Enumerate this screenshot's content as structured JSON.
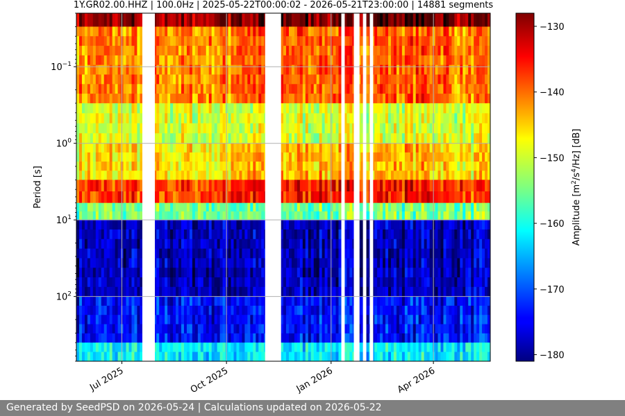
{
  "chart_data": {
    "type": "heatmap",
    "title": "1Y.GR02.00.HHZ | 100.0Hz | 2025-05-22T00:00:02 - 2026-05-21T23:00:00 | 14881 segments",
    "ylabel": "Period [s]",
    "y_scale": "log",
    "y_inverted": true,
    "ylim": [
      0.02,
      700
    ],
    "y_ticks": [
      {
        "value": 0.1,
        "base": "10",
        "exp": "−1"
      },
      {
        "value": 1,
        "base": "10",
        "exp": "0"
      },
      {
        "value": 10,
        "base": "10",
        "exp": "1"
      },
      {
        "value": 100,
        "base": "10",
        "exp": "2"
      }
    ],
    "xlim": [
      "2025-05-22",
      "2026-05-21"
    ],
    "x_ticks": [
      {
        "date": "2025-07-01",
        "label": "Jul 2025"
      },
      {
        "date": "2025-10-01",
        "label": "Oct 2025"
      },
      {
        "date": "2026-01-01",
        "label": "Jan 2026"
      },
      {
        "date": "2026-04-01",
        "label": "Apr 2026"
      }
    ],
    "grid": true,
    "data_gaps": [
      [
        "2025-07-19",
        "2025-07-30"
      ],
      [
        "2025-11-04",
        "2025-11-18"
      ],
      [
        "2026-01-10",
        "2026-01-13"
      ],
      [
        "2026-01-21",
        "2026-01-26"
      ],
      [
        "2026-01-29",
        "2026-02-01"
      ],
      [
        "2026-02-04",
        "2026-02-07"
      ]
    ],
    "period_bands": [
      {
        "period_range": [
          0.02,
          0.03
        ],
        "level_db": -130
      },
      {
        "period_range": [
          0.03,
          0.3
        ],
        "level_db": -142
      },
      {
        "period_range": [
          0.3,
          1
        ],
        "level_db": -150
      },
      {
        "period_range": [
          1,
          3
        ],
        "level_db": -147
      },
      {
        "period_range": [
          3,
          6
        ],
        "level_db": -138
      },
      {
        "period_range": [
          6,
          10
        ],
        "level_db": -155
      },
      {
        "period_range": [
          10,
          100
        ],
        "level_db": -178
      },
      {
        "period_range": [
          100,
          400
        ],
        "level_db": -174
      },
      {
        "period_range": [
          400,
          700
        ],
        "level_db": -162
      }
    ],
    "colorbar": {
      "label_text": "Amplitude [m",
      "label_sup1": "2",
      "label_mid": "/s",
      "label_sup2": "4",
      "label_end": "/Hz] [dB]",
      "colormap": "jet",
      "range": [
        -181,
        -128
      ],
      "ticks": [
        -130,
        -140,
        -150,
        -160,
        -170,
        -180
      ],
      "tick_labels": [
        "−130",
        "−140",
        "−150",
        "−160",
        "−170",
        "−180"
      ]
    }
  },
  "footer": {
    "text": "Generated by SeedPSD on 2026-05-24 | Calculations updated on 2026-05-22"
  }
}
